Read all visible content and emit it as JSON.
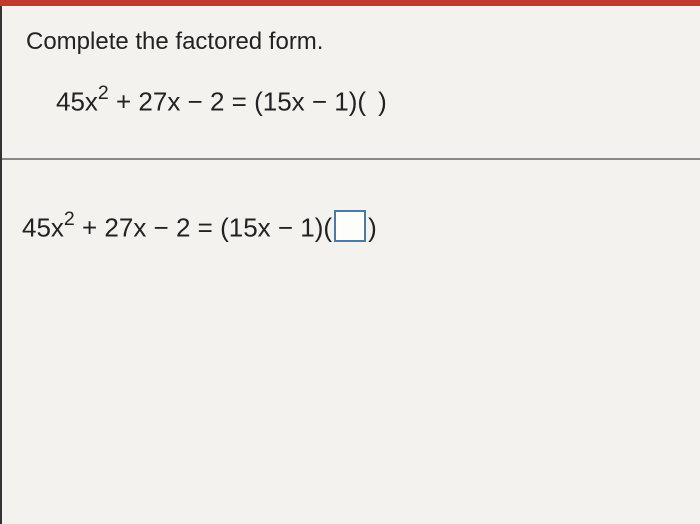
{
  "problem": {
    "instruction": "Complete the factored form.",
    "lhs_coef_a": "45x",
    "lhs_exp": "2",
    "lhs_rest": " + 27x − 2",
    "equals": " = ",
    "factor1": "(15x − 1)",
    "blank_open": "(",
    "blank_close": ")"
  },
  "answer": {
    "lhs_coef_a": "45x",
    "lhs_exp": "2",
    "lhs_rest": " + 27x − 2",
    "equals": " = ",
    "factor1": "(15x − 1)",
    "blank_open": "(",
    "blank_close": ")"
  },
  "style": {
    "accent_bar_color": "#c0392b",
    "background_color": "#e8e6e2",
    "panel_color": "#f4f2ee",
    "text_color": "#222222",
    "input_border_color": "#4a7ba6",
    "divider_color": "#888888",
    "instruction_fontsize": 24,
    "equation_fontsize": 26
  }
}
